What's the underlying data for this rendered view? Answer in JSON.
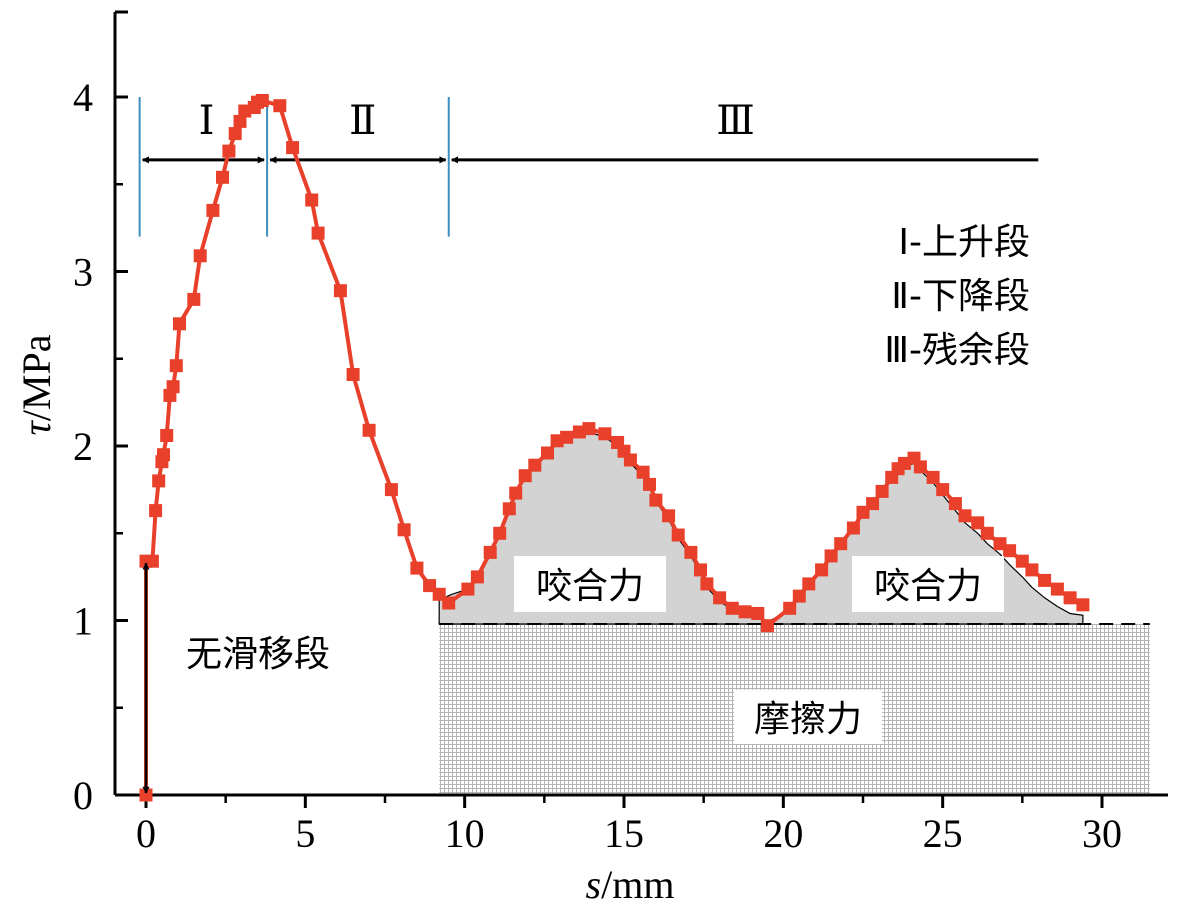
{
  "chart_data": {
    "type": "line",
    "xlabel_italic": "s",
    "xlabel_unit": "/mm",
    "ylabel_italic": "τ",
    "ylabel_unit": "/MPa",
    "xlim": [
      -1,
      32
    ],
    "ylim": [
      0,
      4.5
    ],
    "xticks": [
      0,
      5,
      10,
      15,
      20,
      25,
      30
    ],
    "yticks": [
      0,
      1,
      2,
      3,
      4
    ],
    "series": [
      {
        "marker": "square",
        "color": "#e8402a",
        "points": [
          [
            0,
            0
          ],
          [
            0,
            1.34
          ],
          [
            0.2,
            1.34
          ],
          [
            0.3,
            1.63
          ],
          [
            0.4,
            1.8
          ],
          [
            0.5,
            1.91
          ],
          [
            0.55,
            1.95
          ],
          [
            0.65,
            2.06
          ],
          [
            0.75,
            2.29
          ],
          [
            0.85,
            2.34
          ],
          [
            0.95,
            2.46
          ],
          [
            1.05,
            2.7
          ],
          [
            1.5,
            2.84
          ],
          [
            1.7,
            3.09
          ],
          [
            2.1,
            3.35
          ],
          [
            2.4,
            3.54
          ],
          [
            2.6,
            3.69
          ],
          [
            2.8,
            3.79
          ],
          [
            2.95,
            3.86
          ],
          [
            3.1,
            3.92
          ],
          [
            3.4,
            3.94
          ],
          [
            3.5,
            3.97
          ],
          [
            3.65,
            3.98
          ],
          [
            4.2,
            3.95
          ],
          [
            4.6,
            3.71
          ],
          [
            5.2,
            3.41
          ],
          [
            5.4,
            3.22
          ],
          [
            6.1,
            2.89
          ],
          [
            6.5,
            2.41
          ],
          [
            7.0,
            2.09
          ],
          [
            7.7,
            1.75
          ],
          [
            8.1,
            1.52
          ],
          [
            8.5,
            1.3
          ],
          [
            8.9,
            1.2
          ],
          [
            9.2,
            1.15
          ],
          [
            9.5,
            1.1
          ],
          [
            10.1,
            1.18
          ],
          [
            10.4,
            1.25
          ],
          [
            10.8,
            1.39
          ],
          [
            11.1,
            1.5
          ],
          [
            11.4,
            1.64
          ],
          [
            11.6,
            1.73
          ],
          [
            11.9,
            1.83
          ],
          [
            12.2,
            1.89
          ],
          [
            12.6,
            1.96
          ],
          [
            12.9,
            2.03
          ],
          [
            13.2,
            2.05
          ],
          [
            13.6,
            2.08
          ],
          [
            13.9,
            2.1
          ],
          [
            14.4,
            2.07
          ],
          [
            14.8,
            2.02
          ],
          [
            15.0,
            1.97
          ],
          [
            15.2,
            1.92
          ],
          [
            15.6,
            1.85
          ],
          [
            15.8,
            1.78
          ],
          [
            16.0,
            1.69
          ],
          [
            16.4,
            1.6
          ],
          [
            16.7,
            1.49
          ],
          [
            17.1,
            1.39
          ],
          [
            17.4,
            1.29
          ],
          [
            17.6,
            1.21
          ],
          [
            18.0,
            1.13
          ],
          [
            18.4,
            1.07
          ],
          [
            18.8,
            1.05
          ],
          [
            19.2,
            1.04
          ],
          [
            19.5,
            0.97
          ],
          [
            20.2,
            1.07
          ],
          [
            20.5,
            1.14
          ],
          [
            20.8,
            1.21
          ],
          [
            21.2,
            1.29
          ],
          [
            21.5,
            1.37
          ],
          [
            21.8,
            1.44
          ],
          [
            22.2,
            1.53
          ],
          [
            22.5,
            1.62
          ],
          [
            22.8,
            1.67
          ],
          [
            23.1,
            1.74
          ],
          [
            23.4,
            1.82
          ],
          [
            23.6,
            1.87
          ],
          [
            23.8,
            1.9
          ],
          [
            24.1,
            1.93
          ],
          [
            24.3,
            1.88
          ],
          [
            24.7,
            1.82
          ],
          [
            25.0,
            1.75
          ],
          [
            25.4,
            1.67
          ],
          [
            25.7,
            1.6
          ],
          [
            26.1,
            1.56
          ],
          [
            26.4,
            1.5
          ],
          [
            26.8,
            1.44
          ],
          [
            27.1,
            1.4
          ],
          [
            27.5,
            1.34
          ],
          [
            27.8,
            1.29
          ],
          [
            28.2,
            1.23
          ],
          [
            28.6,
            1.18
          ],
          [
            29.0,
            1.13
          ],
          [
            29.4,
            1.09
          ]
        ]
      }
    ],
    "bite_outline": [
      [
        9.2,
        1.12
      ],
      [
        9.6,
        1.15
      ],
      [
        10.1,
        1.18
      ],
      [
        10.4,
        1.25
      ],
      [
        10.8,
        1.39
      ],
      [
        11.1,
        1.5
      ],
      [
        11.4,
        1.64
      ],
      [
        11.6,
        1.73
      ],
      [
        11.9,
        1.83
      ],
      [
        12.2,
        1.89
      ],
      [
        12.6,
        1.96
      ],
      [
        12.9,
        2.03
      ],
      [
        13.2,
        2.05
      ],
      [
        13.6,
        2.07
      ],
      [
        13.9,
        2.08
      ],
      [
        14.4,
        2.05
      ],
      [
        14.8,
        2.0
      ],
      [
        15.0,
        1.95
      ],
      [
        15.2,
        1.9
      ],
      [
        15.6,
        1.83
      ],
      [
        15.8,
        1.76
      ],
      [
        16.0,
        1.68
      ],
      [
        16.4,
        1.58
      ],
      [
        16.7,
        1.47
      ],
      [
        17.1,
        1.37
      ],
      [
        17.4,
        1.27
      ],
      [
        17.6,
        1.19
      ],
      [
        18.0,
        1.11
      ],
      [
        18.4,
        1.06
      ],
      [
        18.8,
        1.04
      ],
      [
        19.2,
        1.02
      ],
      [
        19.5,
        0.99
      ],
      [
        20.2,
        1.06
      ],
      [
        20.5,
        1.13
      ],
      [
        20.8,
        1.2
      ],
      [
        21.2,
        1.28
      ],
      [
        21.5,
        1.36
      ],
      [
        21.8,
        1.43
      ],
      [
        22.2,
        1.52
      ],
      [
        22.5,
        1.61
      ],
      [
        22.8,
        1.66
      ],
      [
        23.1,
        1.73
      ],
      [
        23.4,
        1.81
      ],
      [
        23.6,
        1.85
      ],
      [
        23.8,
        1.88
      ],
      [
        24.1,
        1.9
      ],
      [
        24.3,
        1.86
      ],
      [
        24.7,
        1.79
      ],
      [
        25.0,
        1.72
      ],
      [
        25.4,
        1.63
      ],
      [
        25.7,
        1.56
      ],
      [
        26.1,
        1.5
      ],
      [
        26.4,
        1.44
      ],
      [
        26.8,
        1.38
      ],
      [
        27.1,
        1.32
      ],
      [
        27.5,
        1.25
      ],
      [
        27.8,
        1.19
      ],
      [
        28.2,
        1.13
      ],
      [
        28.6,
        1.08
      ],
      [
        29.0,
        1.04
      ],
      [
        29.4,
        1.03
      ]
    ],
    "friction_level": 0.98,
    "friction_x_range": [
      9.2,
      31.5
    ],
    "stage_boundaries": [
      -0.2,
      3.8,
      9.5
    ],
    "stage_line_ylim": [
      3.2,
      4.0
    ],
    "stage_arrow_y": 3.64,
    "stage_arrow_end": 28,
    "stage_labels": [
      "Ⅰ",
      "Ⅱ",
      "Ⅲ"
    ],
    "stage_label_x": [
      1.9,
      6.8,
      18.5
    ],
    "stage_label_y": 3.88,
    "legend": [
      "Ⅰ-上升段",
      "Ⅱ-下降段",
      "Ⅲ-残余段"
    ],
    "legend_placement": "top-right",
    "annotations": {
      "no_slip": "无滑移段",
      "bite_left": "咬合力",
      "bite_right": "咬合力",
      "friction": "摩擦力"
    },
    "no_slip_arrow_x": 0,
    "no_slip_arrow_ylim": [
      0,
      1.34
    ],
    "colors": {
      "series": "#e8402a",
      "bite_fill": "#d3d3d3",
      "friction_grid": "#b4b4b4",
      "stage_line": "#3d8fbf",
      "axis": "#000000"
    }
  }
}
